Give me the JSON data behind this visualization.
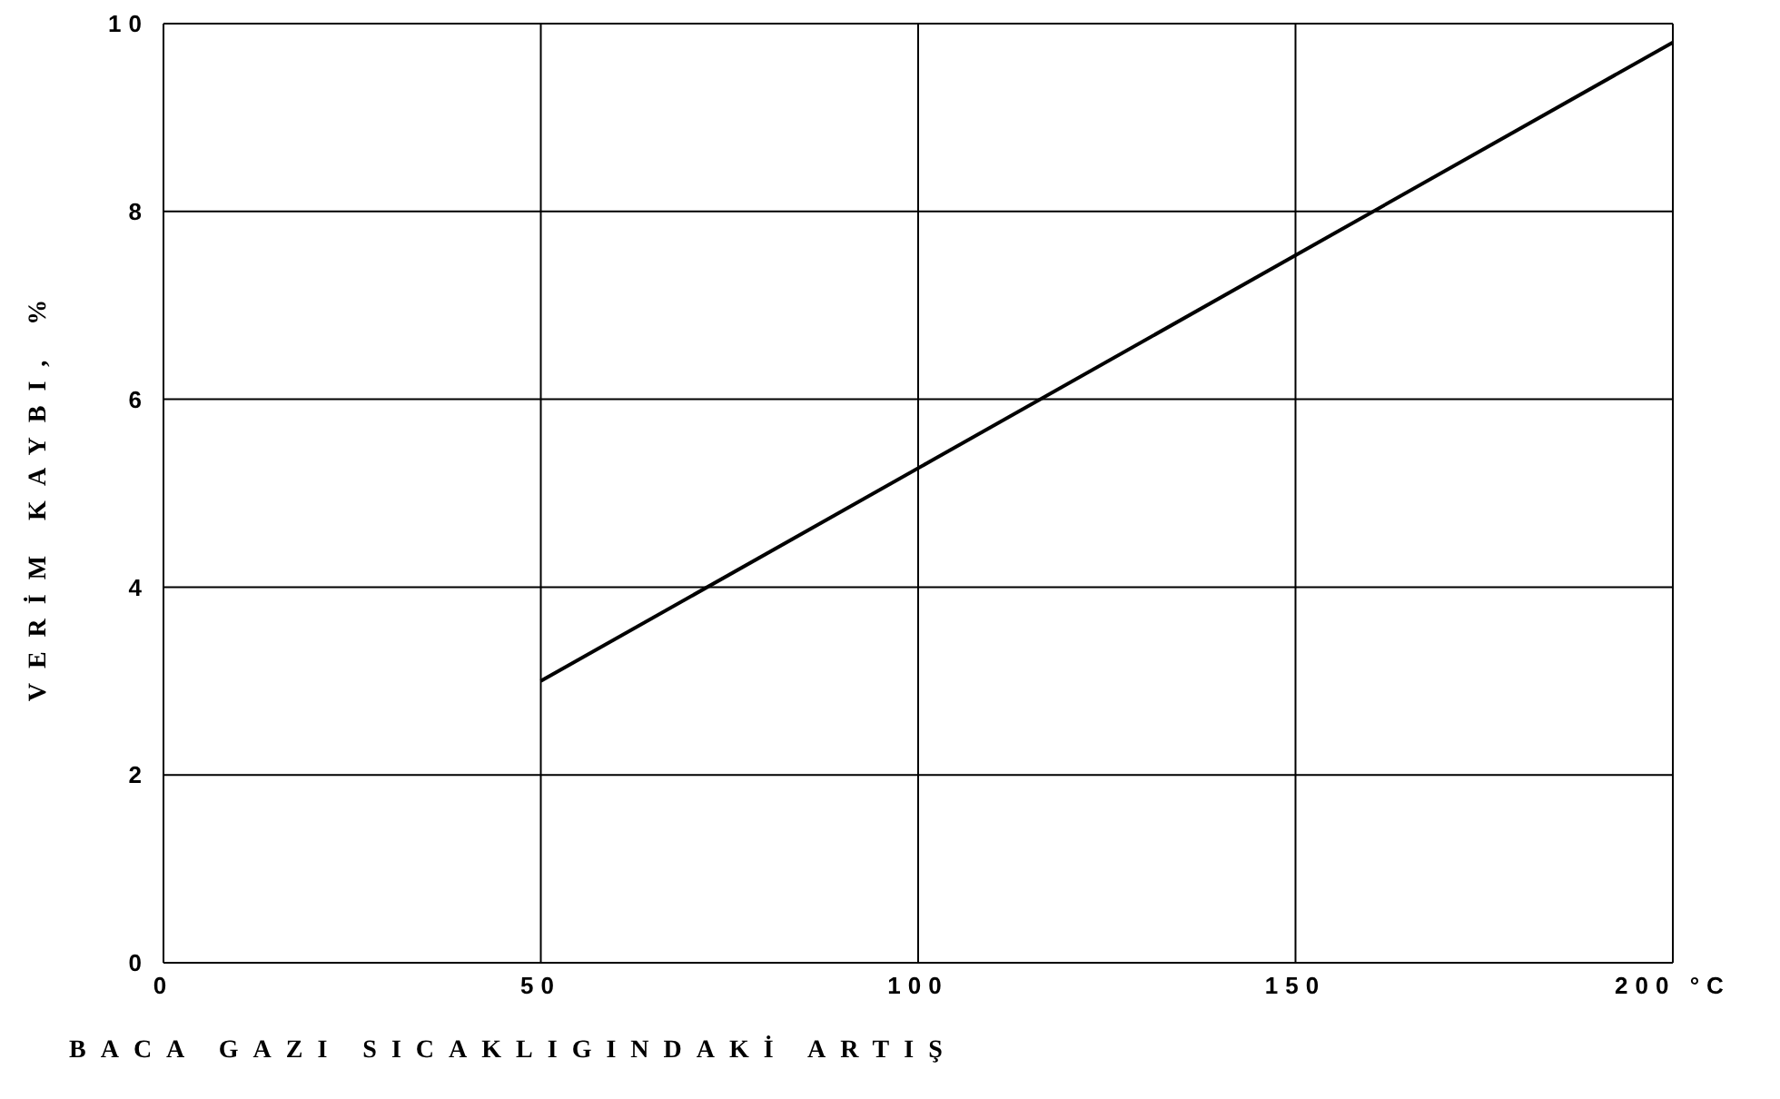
{
  "chart_data": {
    "type": "line",
    "xlabel": "BACA GAZI SICAKLIGINDAKİ ARTIŞ",
    "ylabel": "VERİM KAYBI, %",
    "x": [
      50,
      200
    ],
    "series": [
      {
        "color": "#000000",
        "values": [
          3.0,
          9.8
        ]
      }
    ],
    "xlim": [
      0,
      200
    ],
    "xticks": [
      0,
      50,
      100,
      150,
      {
        "value": 200,
        "label": "200 °C"
      }
    ],
    "ylim": [
      0,
      10
    ],
    "yticks": [
      0,
      2,
      4,
      6,
      8,
      10
    ],
    "grid": true,
    "marker": "none",
    "line_style": "solid"
  }
}
